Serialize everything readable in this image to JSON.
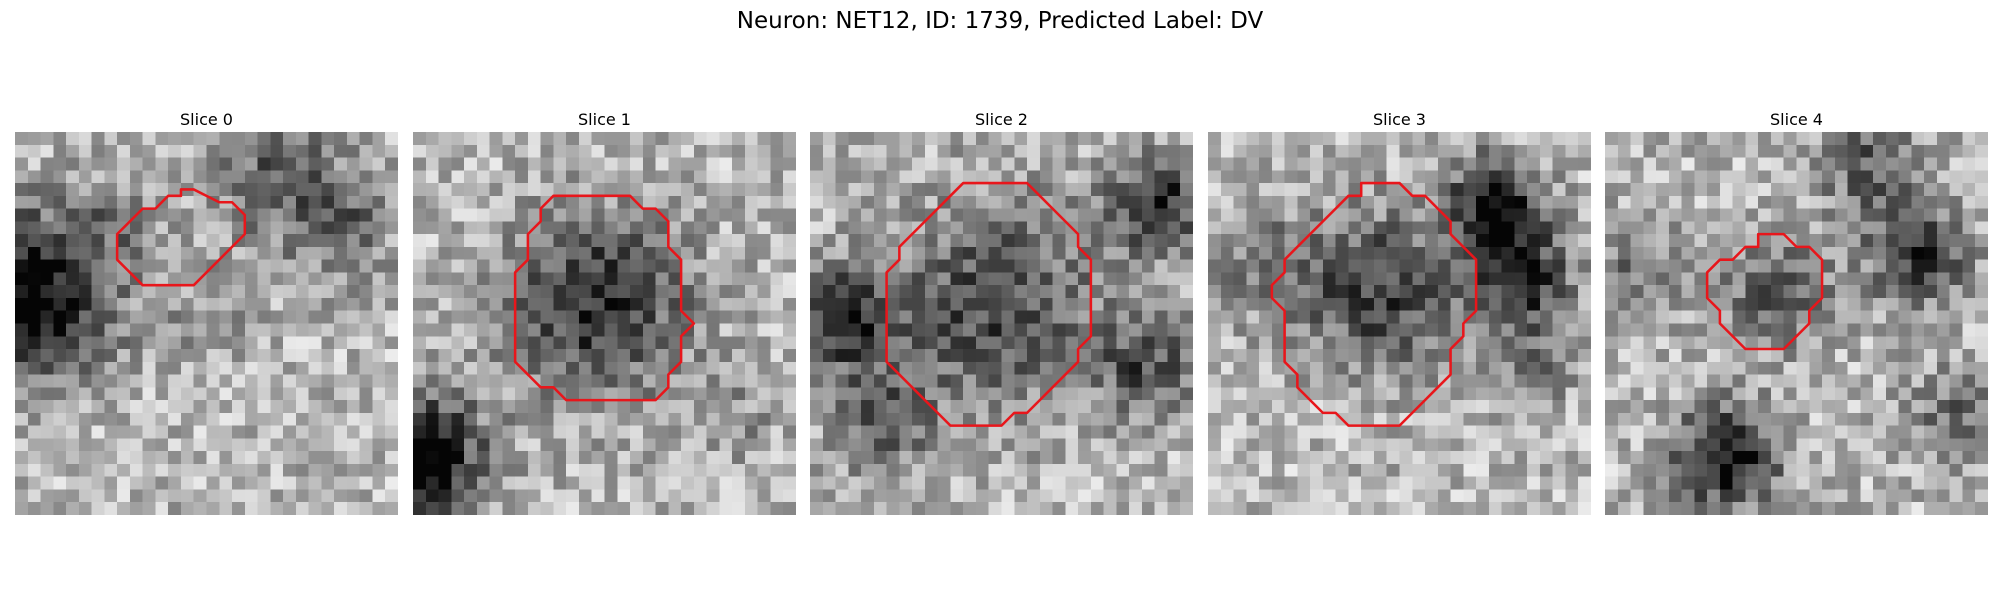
{
  "figure": {
    "title": "Neuron: NET12, ID: 1739, Predicted Label: DV",
    "contour_color": "#e8161b"
  },
  "panels": [
    {
      "title": "Slice 0",
      "seed": 11,
      "contour": [
        [
          13,
          4.5
        ],
        [
          14,
          4.5
        ],
        [
          15,
          5
        ],
        [
          16,
          5.5
        ],
        [
          17,
          5.5
        ],
        [
          18,
          6.5
        ],
        [
          18,
          8
        ],
        [
          17,
          9
        ],
        [
          16,
          10
        ],
        [
          15,
          11
        ],
        [
          14,
          12
        ],
        [
          10,
          12
        ],
        [
          9,
          11
        ],
        [
          8,
          10
        ],
        [
          8,
          8
        ],
        [
          9,
          7
        ],
        [
          10,
          6
        ],
        [
          11,
          6
        ],
        [
          12,
          5
        ],
        [
          13,
          5
        ]
      ],
      "blobs": [
        [
          0,
          12,
          6,
          0.75
        ],
        [
          7,
          7,
          4,
          0.2
        ],
        [
          20,
          3,
          5,
          0.35
        ],
        [
          15,
          14,
          4,
          0.15
        ],
        [
          25,
          7,
          4,
          0.3
        ],
        [
          4,
          16,
          4,
          0.2
        ]
      ]
    },
    {
      "title": "Slice 1",
      "seed": 23,
      "contour": [
        [
          10,
          6
        ],
        [
          11,
          5
        ],
        [
          17,
          5
        ],
        [
          18,
          6
        ],
        [
          19,
          6
        ],
        [
          20,
          7
        ],
        [
          20,
          9
        ],
        [
          21,
          10
        ],
        [
          21,
          14
        ],
        [
          22,
          15
        ],
        [
          21,
          16
        ],
        [
          21,
          18
        ],
        [
          20,
          19
        ],
        [
          20,
          20
        ],
        [
          19,
          21
        ],
        [
          12,
          21
        ],
        [
          11,
          20
        ],
        [
          10,
          20
        ],
        [
          9,
          19
        ],
        [
          8,
          18
        ],
        [
          8,
          11
        ],
        [
          9,
          10
        ],
        [
          9,
          8
        ],
        [
          10,
          7
        ]
      ],
      "blobs": [
        [
          14,
          13,
          7,
          0.55
        ],
        [
          0,
          25,
          5,
          0.75
        ],
        [
          25,
          22,
          3,
          0.15
        ]
      ]
    },
    {
      "title": "Slice 2",
      "seed": 37,
      "contour": [
        [
          12,
          4
        ],
        [
          17,
          4
        ],
        [
          18,
          5
        ],
        [
          19,
          6
        ],
        [
          20,
          7
        ],
        [
          21,
          8
        ],
        [
          21,
          9
        ],
        [
          22,
          10
        ],
        [
          22,
          16
        ],
        [
          21,
          17
        ],
        [
          21,
          18
        ],
        [
          20,
          19
        ],
        [
          19,
          20
        ],
        [
          18,
          21
        ],
        [
          17,
          22
        ],
        [
          16,
          22
        ],
        [
          15,
          23
        ],
        [
          11,
          23
        ],
        [
          10,
          22
        ],
        [
          9,
          21
        ],
        [
          8,
          20
        ],
        [
          7,
          19
        ],
        [
          6,
          18
        ],
        [
          6,
          11
        ],
        [
          7,
          10
        ],
        [
          7,
          9
        ],
        [
          8,
          8
        ],
        [
          9,
          7
        ],
        [
          10,
          6
        ],
        [
          11,
          5
        ]
      ],
      "blobs": [
        [
          14,
          13,
          8,
          0.45
        ],
        [
          27,
          5,
          4,
          0.55
        ],
        [
          2,
          14,
          4,
          0.6
        ],
        [
          5,
          22,
          4,
          0.35
        ],
        [
          26,
          18,
          4,
          0.4
        ]
      ]
    },
    {
      "title": "Slice 3",
      "seed": 51,
      "contour": [
        [
          12,
          4
        ],
        [
          15,
          4
        ],
        [
          16,
          5
        ],
        [
          17,
          5
        ],
        [
          18,
          6
        ],
        [
          19,
          7
        ],
        [
          19,
          8
        ],
        [
          20,
          9
        ],
        [
          21,
          10
        ],
        [
          21,
          14
        ],
        [
          20,
          15
        ],
        [
          20,
          16
        ],
        [
          19,
          17
        ],
        [
          19,
          19
        ],
        [
          18,
          20
        ],
        [
          17,
          21
        ],
        [
          16,
          22
        ],
        [
          15,
          23
        ],
        [
          11,
          23
        ],
        [
          10,
          22
        ],
        [
          9,
          22
        ],
        [
          8,
          21
        ],
        [
          7,
          20
        ],
        [
          7,
          19
        ],
        [
          6,
          18
        ],
        [
          6,
          14
        ],
        [
          5,
          13
        ],
        [
          5,
          12
        ],
        [
          6,
          11
        ],
        [
          6,
          10
        ],
        [
          7,
          9
        ],
        [
          8,
          8
        ],
        [
          9,
          7
        ],
        [
          10,
          6
        ],
        [
          11,
          5
        ],
        [
          12,
          5
        ]
      ],
      "blobs": [
        [
          13,
          12,
          6,
          0.5
        ],
        [
          22,
          5,
          3.5,
          0.7
        ],
        [
          24,
          11,
          4,
          0.6
        ],
        [
          4,
          10,
          4,
          0.25
        ],
        [
          25,
          18,
          3,
          0.3
        ]
      ]
    },
    {
      "title": "Slice 4",
      "seed": 67,
      "contour": [
        [
          12,
          8
        ],
        [
          14,
          8
        ],
        [
          15,
          9
        ],
        [
          16,
          9
        ],
        [
          17,
          10
        ],
        [
          17,
          13
        ],
        [
          16,
          14
        ],
        [
          16,
          15
        ],
        [
          15,
          16
        ],
        [
          14,
          17
        ],
        [
          11,
          17
        ],
        [
          10,
          16
        ],
        [
          9,
          15
        ],
        [
          9,
          14
        ],
        [
          8,
          13
        ],
        [
          8,
          11
        ],
        [
          9,
          10
        ],
        [
          10,
          10
        ],
        [
          11,
          9
        ],
        [
          12,
          9
        ]
      ],
      "blobs": [
        [
          13,
          12,
          4,
          0.4
        ],
        [
          9,
          25,
          4,
          0.7
        ],
        [
          24,
          9,
          4,
          0.5
        ],
        [
          2,
          10,
          4,
          0.25
        ],
        [
          20,
          2,
          4,
          0.35
        ],
        [
          27,
          22,
          4,
          0.3
        ]
      ]
    }
  ]
}
